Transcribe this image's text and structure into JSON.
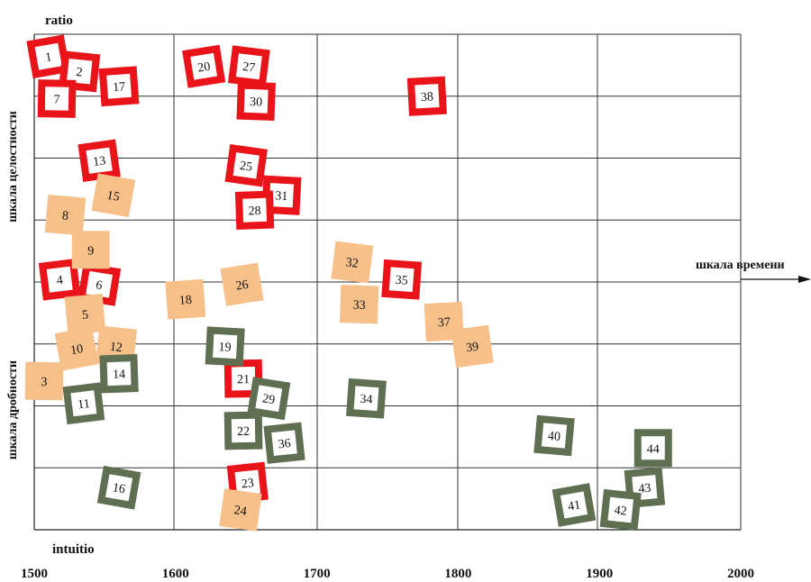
{
  "chart_data": {
    "type": "scatter",
    "title": "",
    "top_label": "ratio",
    "bottom_label": "intuitio",
    "xlabel": "шкала времени",
    "ylabel_upper": "шкала целостности",
    "ylabel_lower": "шкала дробности",
    "xlim": [
      1500,
      2000
    ],
    "x_ticks": [
      "1500",
      "1600",
      "1700",
      "1800",
      "1900",
      "2000"
    ],
    "grid": true,
    "colors": {
      "red": "#e8141a",
      "orange": "#f5c08a",
      "green": "#5f7052"
    },
    "points": [
      {
        "label": "1",
        "x": 1510,
        "y": 0.955,
        "color": "red"
      },
      {
        "label": "2",
        "x": 1532,
        "y": 0.925,
        "color": "red"
      },
      {
        "label": "7",
        "x": 1516,
        "y": 0.87,
        "color": "red"
      },
      {
        "label": "17",
        "x": 1560,
        "y": 0.895,
        "color": "red"
      },
      {
        "label": "20",
        "x": 1620,
        "y": 0.935,
        "color": "red"
      },
      {
        "label": "27",
        "x": 1652,
        "y": 0.935,
        "color": "red"
      },
      {
        "label": "30",
        "x": 1657,
        "y": 0.865,
        "color": "red"
      },
      {
        "label": "38",
        "x": 1778,
        "y": 0.875,
        "color": "red"
      },
      {
        "label": "13",
        "x": 1546,
        "y": 0.745,
        "color": "red"
      },
      {
        "label": "25",
        "x": 1650,
        "y": 0.735,
        "color": "red"
      },
      {
        "label": "31",
        "x": 1675,
        "y": 0.675,
        "color": "red"
      },
      {
        "label": "28",
        "x": 1656,
        "y": 0.645,
        "color": "red"
      },
      {
        "label": "4",
        "x": 1518,
        "y": 0.505,
        "color": "red"
      },
      {
        "label": "6",
        "x": 1546,
        "y": 0.495,
        "color": "red"
      },
      {
        "label": "35",
        "x": 1760,
        "y": 0.505,
        "color": "red"
      },
      {
        "label": "21",
        "x": 1648,
        "y": 0.305,
        "color": "red"
      },
      {
        "label": "23",
        "x": 1651,
        "y": 0.095,
        "color": "red"
      },
      {
        "label": "15",
        "x": 1556,
        "y": 0.675,
        "color": "orange"
      },
      {
        "label": "8",
        "x": 1522,
        "y": 0.635,
        "color": "orange"
      },
      {
        "label": "9",
        "x": 1540,
        "y": 0.565,
        "color": "orange"
      },
      {
        "label": "5",
        "x": 1536,
        "y": 0.435,
        "color": "orange"
      },
      {
        "label": "10",
        "x": 1530,
        "y": 0.365,
        "color": "orange"
      },
      {
        "label": "12",
        "x": 1558,
        "y": 0.37,
        "color": "orange"
      },
      {
        "label": "3",
        "x": 1507,
        "y": 0.3,
        "color": "orange"
      },
      {
        "label": "18",
        "x": 1607,
        "y": 0.465,
        "color": "orange"
      },
      {
        "label": "26",
        "x": 1647,
        "y": 0.495,
        "color": "orange"
      },
      {
        "label": "32",
        "x": 1725,
        "y": 0.54,
        "color": "orange"
      },
      {
        "label": "33",
        "x": 1730,
        "y": 0.455,
        "color": "orange"
      },
      {
        "label": "37",
        "x": 1790,
        "y": 0.42,
        "color": "orange"
      },
      {
        "label": "39",
        "x": 1810,
        "y": 0.37,
        "color": "orange"
      },
      {
        "label": "24",
        "x": 1646,
        "y": 0.04,
        "color": "orange"
      },
      {
        "label": "19",
        "x": 1635,
        "y": 0.37,
        "color": "green"
      },
      {
        "label": "14",
        "x": 1560,
        "y": 0.315,
        "color": "green"
      },
      {
        "label": "11",
        "x": 1535,
        "y": 0.255,
        "color": "green"
      },
      {
        "label": "29",
        "x": 1666,
        "y": 0.265,
        "color": "green"
      },
      {
        "label": "34",
        "x": 1735,
        "y": 0.265,
        "color": "green"
      },
      {
        "label": "22",
        "x": 1648,
        "y": 0.2,
        "color": "green"
      },
      {
        "label": "36",
        "x": 1677,
        "y": 0.175,
        "color": "green"
      },
      {
        "label": "16",
        "x": 1560,
        "y": 0.085,
        "color": "green"
      },
      {
        "label": "40",
        "x": 1868,
        "y": 0.19,
        "color": "green"
      },
      {
        "label": "44",
        "x": 1938,
        "y": 0.165,
        "color": "green"
      },
      {
        "label": "43",
        "x": 1932,
        "y": 0.085,
        "color": "green"
      },
      {
        "label": "41",
        "x": 1882,
        "y": 0.05,
        "color": "green"
      },
      {
        "label": "42",
        "x": 1915,
        "y": 0.04,
        "color": "green"
      }
    ]
  }
}
